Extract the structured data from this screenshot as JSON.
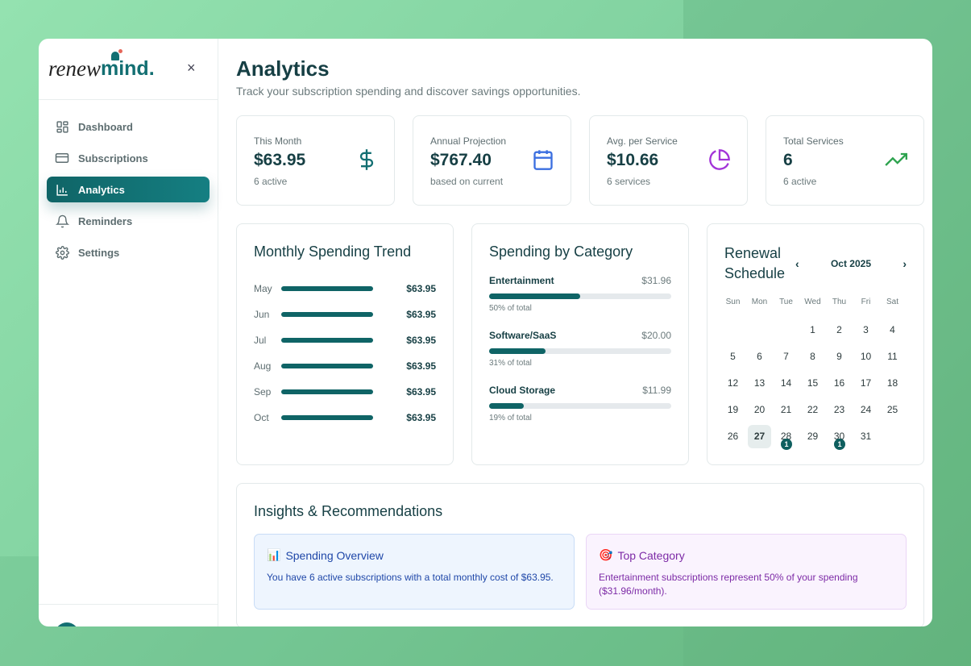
{
  "brand": {
    "part1": "renew",
    "part2": "mind."
  },
  "sidebar": {
    "items": [
      {
        "label": "Dashboard",
        "icon": "grid-icon"
      },
      {
        "label": "Subscriptions",
        "icon": "card-icon"
      },
      {
        "label": "Analytics",
        "icon": "bar-chart-icon",
        "active": true
      },
      {
        "label": "Reminders",
        "icon": "bell-icon"
      },
      {
        "label": "Settings",
        "icon": "gear-icon"
      }
    ]
  },
  "header": {
    "title": "Analytics",
    "subtitle": "Track your subscription spending and discover savings opportunities."
  },
  "stats": [
    {
      "label": "This Month",
      "value": "$63.95",
      "sub": "6 active",
      "icon": "dollar-icon",
      "color": "#136f72"
    },
    {
      "label": "Annual Projection",
      "value": "$767.40",
      "sub": "based on current",
      "icon": "calendar-icon",
      "color": "#3b6fe0"
    },
    {
      "label": "Avg. per Service",
      "value": "$10.66",
      "sub": "6 services",
      "icon": "pie-chart-icon",
      "color": "#a234d8"
    },
    {
      "label": "Total Services",
      "value": "6",
      "sub": "6 active",
      "icon": "trending-up-icon",
      "color": "#2ea34f"
    }
  ],
  "trend": {
    "title": "Monthly Spending Trend",
    "rows": [
      {
        "month": "May",
        "amount": "$63.95"
      },
      {
        "month": "Jun",
        "amount": "$63.95"
      },
      {
        "month": "Jul",
        "amount": "$63.95"
      },
      {
        "month": "Aug",
        "amount": "$63.95"
      },
      {
        "month": "Sep",
        "amount": "$63.95"
      },
      {
        "month": "Oct",
        "amount": "$63.95"
      }
    ]
  },
  "categories": {
    "title": "Spending by Category",
    "items": [
      {
        "name": "Entertainment",
        "amount": "$31.96",
        "pct": 50,
        "pct_label": "50% of total"
      },
      {
        "name": "Software/SaaS",
        "amount": "$20.00",
        "pct": 31,
        "pct_label": "31% of total"
      },
      {
        "name": "Cloud Storage",
        "amount": "$11.99",
        "pct": 19,
        "pct_label": "19% of total"
      }
    ]
  },
  "calendar": {
    "title": "Renewal Schedule",
    "month": "Oct 2025",
    "prev": "‹",
    "next": "›",
    "dows": [
      "Sun",
      "Mon",
      "Tue",
      "Wed",
      "Thu",
      "Fri",
      "Sat"
    ],
    "first_offset": 3,
    "days": 31,
    "today": 27,
    "badges": {
      "28": "1",
      "30": "1"
    }
  },
  "insights": {
    "title": "Insights & Recommendations",
    "cards": [
      {
        "emoji": "📊",
        "title": "Spending Overview",
        "text": "You have 6 active subscriptions with a total monthly cost of $63.95."
      },
      {
        "emoji": "🎯",
        "title": "Top Category",
        "text": "Entertainment subscriptions represent 50% of your spending ($31.96/month)."
      }
    ]
  },
  "close_label": "×"
}
